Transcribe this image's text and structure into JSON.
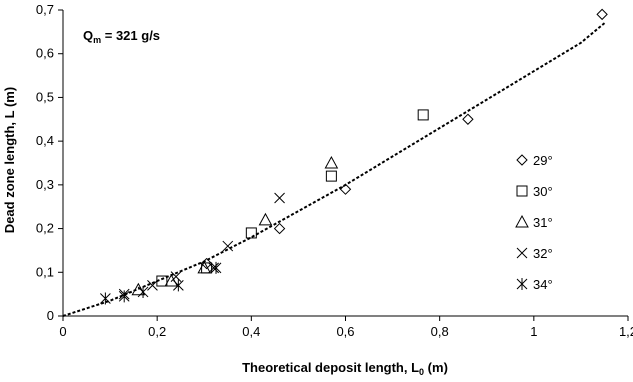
{
  "chart_data": {
    "type": "scatter",
    "xlabel": "Theoretical deposit length, L",
    "xlabel_sub": "0",
    "xlabel_suffix": " (m)",
    "ylabel": "Dead zone length, L (m)",
    "xlim": [
      0,
      1.2
    ],
    "ylim": [
      0,
      0.7
    ],
    "xticks": [
      0,
      0.2,
      0.4,
      0.6,
      0.8,
      1,
      1.2
    ],
    "yticks": [
      0,
      0.1,
      0.2,
      0.3,
      0.4,
      0.5,
      0.6,
      0.7
    ],
    "xtick_labels": [
      "0",
      "0,2",
      "0,4",
      "0,6",
      "0,8",
      "1",
      "1,2"
    ],
    "ytick_labels": [
      "0",
      "0,1",
      "0,2",
      "0,3",
      "0,4",
      "0,5",
      "0,6",
      "0,7"
    ],
    "grid": false,
    "legend_position": "right",
    "annotation": {
      "prefix": "Q",
      "sub": "m",
      "suffix": " = 321 g/s"
    },
    "trend_line": {
      "style": "dotted",
      "color": "#000000",
      "points": [
        [
          0,
          0
        ],
        [
          0.1,
          0.035
        ],
        [
          0.2,
          0.08
        ],
        [
          0.3,
          0.125
        ],
        [
          0.4,
          0.18
        ],
        [
          0.5,
          0.24
        ],
        [
          0.6,
          0.3
        ],
        [
          0.7,
          0.365
        ],
        [
          0.8,
          0.43
        ],
        [
          0.9,
          0.495
        ],
        [
          1.0,
          0.56
        ],
        [
          1.1,
          0.625
        ],
        [
          1.15,
          0.67
        ]
      ]
    },
    "series": [
      {
        "name": "29°",
        "marker": "diamond",
        "x": [
          0.305,
          0.46,
          0.6,
          0.86,
          1.145
        ],
        "y": [
          0.12,
          0.2,
          0.29,
          0.45,
          0.69
        ]
      },
      {
        "name": "30°",
        "marker": "square",
        "x": [
          0.21,
          0.305,
          0.4,
          0.57,
          0.765
        ],
        "y": [
          0.08,
          0.11,
          0.19,
          0.32,
          0.46
        ]
      },
      {
        "name": "31°",
        "marker": "triangle",
        "x": [
          0.16,
          0.23,
          0.3,
          0.43,
          0.57
        ],
        "y": [
          0.06,
          0.08,
          0.11,
          0.22,
          0.35
        ]
      },
      {
        "name": "32°",
        "marker": "x",
        "x": [
          0.13,
          0.19,
          0.24,
          0.32,
          0.35,
          0.46
        ],
        "y": [
          0.05,
          0.07,
          0.09,
          0.11,
          0.16,
          0.27
        ]
      },
      {
        "name": "34°",
        "marker": "asterisk",
        "x": [
          0.09,
          0.13,
          0.17,
          0.245,
          0.325
        ],
        "y": [
          0.04,
          0.045,
          0.055,
          0.07,
          0.11
        ]
      }
    ]
  }
}
